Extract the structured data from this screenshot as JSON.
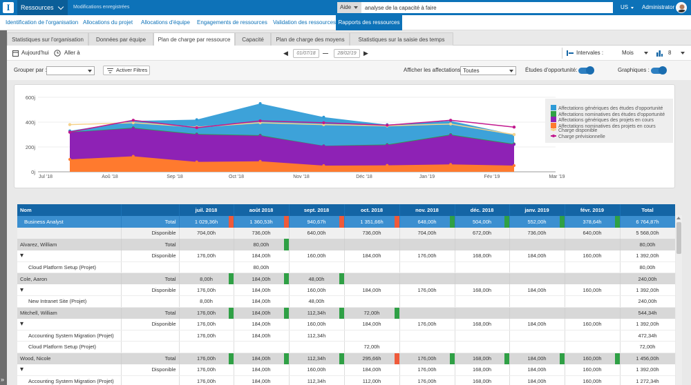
{
  "topbar": {
    "logo_letter": "I",
    "app_name": "Ressources",
    "saved_status": "Modifications enregistrées",
    "help_label": "Aide",
    "search_value": "analyse de la capacité à faire",
    "language": "US",
    "user_name": "Administrator"
  },
  "nav": {
    "items": [
      "Identification de l'organisation",
      "Allocations du projet",
      "Allocations d'équipe",
      "Engagements de ressources",
      "Validation des ressources",
      "Rapports des ressources"
    ],
    "active_index": 5
  },
  "tabs": {
    "items": [
      "Statistiques sur l'organisation",
      "Données par équipe",
      "Plan de charge par ressource",
      "Capacité",
      "Plan de charge des moyens",
      "Statistiques sur la saisie des temps"
    ],
    "active_index": 2
  },
  "toolbar": {
    "today": "Aujourd'hui",
    "goto": "Aller à",
    "start_date": "01/07/18",
    "end_date": "28/02/19",
    "intervals_label": "Intervales :",
    "intervals_value": "Mois",
    "count_value": "8"
  },
  "filters": {
    "group_by_label": "Grouper par :",
    "group_by_value": "",
    "activate_filters": "Activer Filtres",
    "show_assignments_label": "Afficher les affectations:",
    "show_assignments_value": "Toutes",
    "opportunity_studies_label": "Études d'opportunité:",
    "opportunity_studies_on": true,
    "charts_label": "Graphiques :",
    "charts_on": true
  },
  "chart_data": {
    "type": "area",
    "y_tick_labels": [
      "0j",
      "200j",
      "400j",
      "600j"
    ],
    "ylim": [
      0,
      600
    ],
    "x_tick_labels": [
      "Jul '18",
      "Aoû '18",
      "Sep '18",
      "Oct '18",
      "Nov '18",
      "Déc '18",
      "Jan '19",
      "Fév '19",
      "Mar '19"
    ],
    "x": [
      "Jul '18",
      "Aug '18",
      "Sep '18",
      "Oct '18",
      "Nov '18",
      "Dec '18",
      "Jan '19",
      "Feb '19"
    ],
    "series": [
      {
        "name": "Affectations génériques des études d'opportunité",
        "color": "#2d9ad6",
        "kind": "area",
        "values": [
          330,
          410,
          420,
          550,
          440,
          380,
          410,
          300
        ]
      },
      {
        "name": "Affectations nominatives des études d'opportunité",
        "color": "#2fa045",
        "kind": "area",
        "values": [
          320,
          355,
          305,
          295,
          210,
          220,
          300,
          225
        ]
      },
      {
        "name": "Affectations génériques des projets en cours",
        "color": "#8e22b5",
        "kind": "area",
        "values": [
          318,
          350,
          300,
          290,
          208,
          215,
          295,
          220
        ]
      },
      {
        "name": "Affectations nominatives des projets en cours",
        "color": "#ff7a2e",
        "kind": "area",
        "values": [
          100,
          125,
          80,
          85,
          50,
          52,
          60,
          50
        ]
      },
      {
        "name": "Charge disponible",
        "color": "#f5d28a",
        "kind": "line",
        "values": [
          380,
          395,
          360,
          395,
          380,
          370,
          385,
          300
        ]
      },
      {
        "name": "Charge prévisionnelle",
        "color": "#c2188e",
        "kind": "line",
        "values": [
          320,
          415,
          355,
          410,
          395,
          375,
          415,
          360
        ]
      }
    ]
  },
  "table": {
    "columns": [
      "Nom",
      "",
      "juil. 2018",
      "août 2018",
      "sept. 2018",
      "oct. 2018",
      "nov. 2018",
      "déc. 2018",
      "janv. 2019",
      "févr. 2019",
      "Total"
    ],
    "rows": [
      {
        "kind": "hdr-row",
        "name": "Business Analyst",
        "label": "Total",
        "cells": [
          "1 029,36h",
          "1 360,53h",
          "940,67h",
          "1 351,66h",
          "648,00h",
          "504,00h",
          "552,00h",
          "378,64h",
          "6 764,87h"
        ],
        "marks": [
          "red",
          "red",
          "red",
          "red",
          "green",
          "green",
          "green",
          "green",
          ""
        ]
      },
      {
        "kind": "grey",
        "name": "",
        "label": "Disponible",
        "cells": [
          "704,00h",
          "736,00h",
          "640,00h",
          "736,00h",
          "704,00h",
          "672,00h",
          "736,00h",
          "640,00h",
          "5 568,00h"
        ],
        "marks": []
      },
      {
        "kind": "person",
        "name": "Alvarez, William",
        "label": "Total",
        "cells": [
          "",
          "80,00h",
          "",
          "",
          "",
          "",
          "",
          "",
          "80,00h"
        ],
        "marks": [
          "",
          "green",
          "",
          "",
          "",
          "",
          "",
          "",
          ""
        ]
      },
      {
        "kind": "dispo",
        "name": "",
        "label": "Disponible",
        "caret": true,
        "cells": [
          "176,00h",
          "184,00h",
          "160,00h",
          "184,00h",
          "176,00h",
          "168,00h",
          "184,00h",
          "160,00h",
          "1 392,00h"
        ],
        "marks": []
      },
      {
        "kind": "proj",
        "name": "Cloud Platform Setup (Projet)",
        "label": "",
        "cells": [
          "",
          "80,00h",
          "",
          "",
          "",
          "",
          "",
          "",
          "80,00h"
        ],
        "marks": []
      },
      {
        "kind": "person",
        "name": "Cole, Aaron",
        "label": "Total",
        "cells": [
          "8,00h",
          "184,00h",
          "48,00h",
          "",
          "",
          "",
          "",
          "",
          "240,00h"
        ],
        "marks": [
          "green",
          "green",
          "green",
          "",
          "",
          "",
          "",
          "",
          ""
        ]
      },
      {
        "kind": "dispo",
        "name": "",
        "label": "Disponible",
        "caret": true,
        "cells": [
          "176,00h",
          "184,00h",
          "160,00h",
          "184,00h",
          "176,00h",
          "168,00h",
          "184,00h",
          "160,00h",
          "1 392,00h"
        ],
        "marks": []
      },
      {
        "kind": "proj",
        "name": "New Intranet Site (Projet)",
        "label": "",
        "cells": [
          "8,00h",
          "184,00h",
          "48,00h",
          "",
          "",
          "",
          "",
          "",
          "240,00h"
        ],
        "marks": []
      },
      {
        "kind": "person",
        "name": "Mitchell, William",
        "label": "Total",
        "cells": [
          "176,00h",
          "184,00h",
          "112,34h",
          "72,00h",
          "",
          "",
          "",
          "",
          "544,34h"
        ],
        "marks": [
          "green",
          "green",
          "green",
          "green",
          "",
          "",
          "",
          "",
          ""
        ]
      },
      {
        "kind": "dispo",
        "name": "",
        "label": "Disponible",
        "caret": true,
        "cells": [
          "176,00h",
          "184,00h",
          "160,00h",
          "184,00h",
          "176,00h",
          "168,00h",
          "184,00h",
          "160,00h",
          "1 392,00h"
        ],
        "marks": []
      },
      {
        "kind": "proj",
        "name": "Accounting System Migration (Projet)",
        "label": "",
        "cells": [
          "176,00h",
          "184,00h",
          "112,34h",
          "",
          "",
          "",
          "",
          "",
          "472,34h"
        ],
        "marks": []
      },
      {
        "kind": "proj",
        "name": "Cloud Platform Setup (Projet)",
        "label": "",
        "cells": [
          "",
          "",
          "",
          "72,00h",
          "",
          "",
          "",
          "",
          "72,00h"
        ],
        "marks": []
      },
      {
        "kind": "person",
        "name": "Wood, Nicole",
        "label": "Total",
        "cells": [
          "176,00h",
          "184,00h",
          "112,34h",
          "295,66h",
          "176,00h",
          "168,00h",
          "184,00h",
          "160,00h",
          "1 456,00h"
        ],
        "marks": [
          "green",
          "green",
          "green",
          "red",
          "green",
          "green",
          "green",
          "green",
          ""
        ]
      },
      {
        "kind": "dispo",
        "name": "",
        "label": "Disponible",
        "caret": true,
        "cells": [
          "176,00h",
          "184,00h",
          "160,00h",
          "184,00h",
          "176,00h",
          "168,00h",
          "184,00h",
          "160,00h",
          "1 392,00h"
        ],
        "marks": []
      },
      {
        "kind": "proj",
        "name": "Accounting System Migration (Projet)",
        "label": "",
        "cells": [
          "176,00h",
          "184,00h",
          "112,34h",
          "112,00h",
          "176,00h",
          "168,00h",
          "184,00h",
          "160,00h",
          "1 272,34h"
        ],
        "marks": []
      }
    ]
  }
}
